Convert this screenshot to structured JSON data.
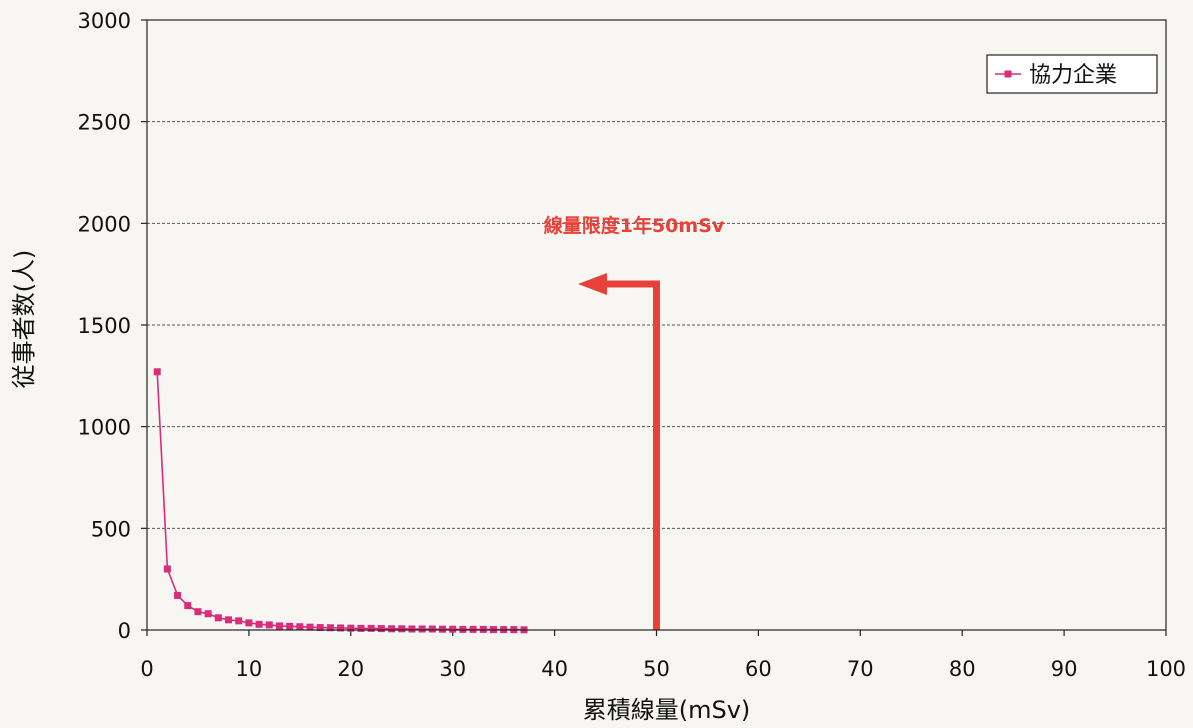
{
  "chart_data": {
    "type": "line",
    "title": "",
    "xlabel": "累積線量(mSv)",
    "ylabel": "従事者数(人)",
    "xlim": [
      0,
      100
    ],
    "ylim": [
      0,
      3000
    ],
    "x_ticks": [
      "0",
      "10",
      "20",
      "30",
      "40",
      "50",
      "60",
      "70",
      "80",
      "90",
      "100"
    ],
    "y_ticks": [
      "0",
      "500",
      "1000",
      "1500",
      "2000",
      "2500",
      "3000"
    ],
    "grid": "horizontal dashed",
    "legend_position": "top-right",
    "series": [
      {
        "name": "協力企業",
        "color": "#d92c7a",
        "marker": "square",
        "x": [
          1,
          2,
          3,
          4,
          5,
          6,
          7,
          8,
          9,
          10,
          11,
          12,
          13,
          14,
          15,
          16,
          17,
          18,
          19,
          20,
          21,
          22,
          23,
          24,
          25,
          26,
          27,
          28,
          29,
          30,
          31,
          32,
          33,
          34,
          35,
          36,
          37
        ],
        "y": [
          1270,
          300,
          170,
          120,
          90,
          80,
          60,
          50,
          45,
          35,
          28,
          25,
          20,
          18,
          16,
          14,
          12,
          11,
          10,
          9,
          8,
          8,
          7,
          6,
          6,
          5,
          5,
          5,
          4,
          4,
          3,
          3,
          3,
          2,
          2,
          2,
          1
        ]
      }
    ],
    "annotations": [
      {
        "text": "線量限度1年50mSv",
        "color": "#e8413a",
        "x": 50
      }
    ]
  }
}
